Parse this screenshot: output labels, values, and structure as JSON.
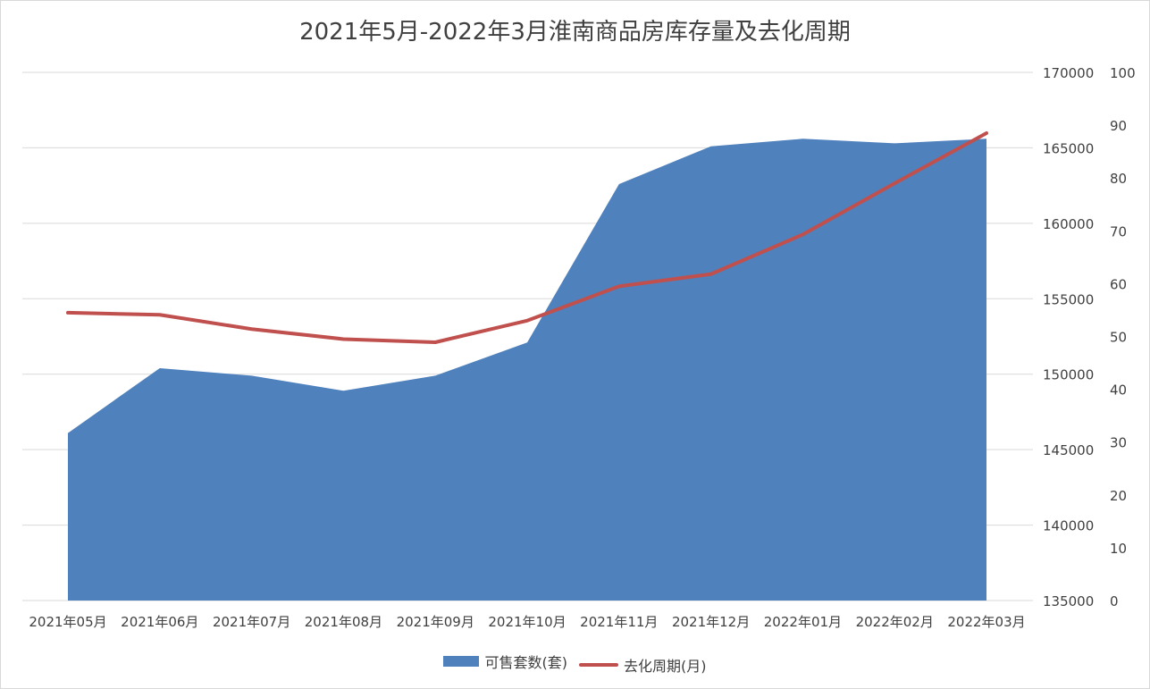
{
  "chart_data": {
    "type": "area+line",
    "title": "2021年5月-2022年3月淮南商品房库存量及去化周期",
    "categories": [
      "2021年05月",
      "2021年06月",
      "2021年07月",
      "2021年08月",
      "2021年09月",
      "2021年10月",
      "2021年11月",
      "2021年12月",
      "2022年01月",
      "2022年02月",
      "2022年03月"
    ],
    "series": [
      {
        "name": "可售套数(套)",
        "kind": "area",
        "axis": "left",
        "color": "#4f81bd",
        "values": [
          146100,
          150400,
          149900,
          148900,
          149900,
          152100,
          162600,
          165100,
          165600,
          165300,
          165600
        ]
      },
      {
        "name": "去化周期(月)",
        "kind": "line",
        "axis": "right",
        "color": "#c0504d",
        "values": [
          54.5,
          54.1,
          51.4,
          49.5,
          48.9,
          53.0,
          59.5,
          61.8,
          69.3,
          79.0,
          88.5
        ]
      }
    ],
    "y_left": {
      "min": 135000,
      "max": 170000,
      "ticks": [
        135000,
        140000,
        145000,
        150000,
        155000,
        160000,
        165000,
        170000
      ]
    },
    "y_right": {
      "min": 0,
      "max": 100,
      "ticks": [
        0,
        10,
        20,
        30,
        40,
        50,
        60,
        70,
        80,
        90,
        100
      ]
    },
    "grid": true,
    "legend_position": "bottom"
  }
}
